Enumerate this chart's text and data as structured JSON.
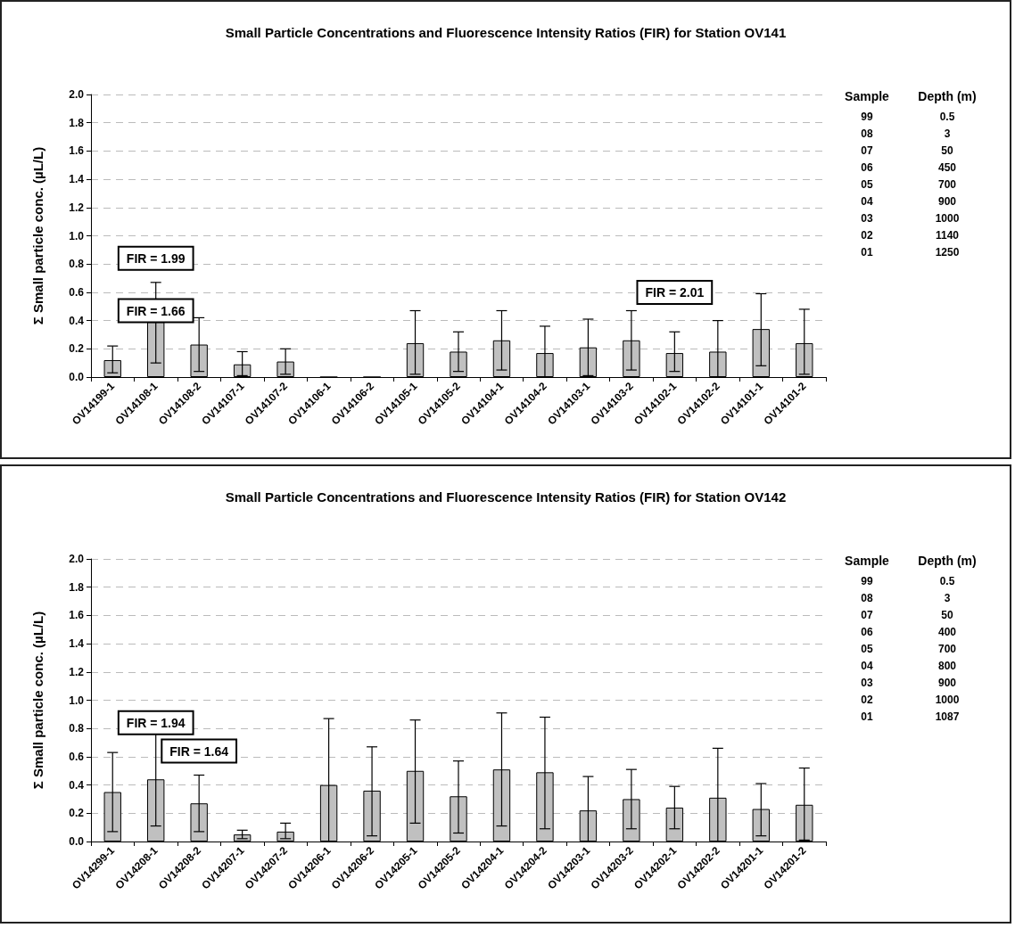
{
  "chart_data": [
    {
      "type": "bar",
      "title": "Small Particle Concentrations and Fluorescence Intensity Ratios (FIR) for Station OV141",
      "ylabel": "Σ Small particle conc. (µL/L)",
      "categories": [
        "OV14199-1",
        "OV14108-1",
        "OV14108-2",
        "OV14107-1",
        "OV14107-2",
        "OV14106-1",
        "OV14106-2",
        "OV14105-1",
        "OV14105-2",
        "OV14104-1",
        "OV14104-2",
        "OV14103-1",
        "OV14103-2",
        "OV14102-1",
        "OV14102-2",
        "OV14101-1",
        "OV14101-2"
      ],
      "series": [
        {
          "color": "#c0c0c0",
          "values": [
            0.12,
            0.39,
            0.23,
            0.09,
            0.11,
            0,
            0,
            0.24,
            0.18,
            0.26,
            0.17,
            0.21,
            0.26,
            0.17,
            0.18,
            0.34,
            0.24
          ],
          "errors": [
            [
              0.03,
              0.22
            ],
            [
              0.1,
              0.67
            ],
            [
              0.04,
              0.42
            ],
            [
              0.01,
              0.18
            ],
            [
              0.02,
              0.2
            ],
            null,
            null,
            [
              0.02,
              0.47
            ],
            [
              0.04,
              0.32
            ],
            [
              0.05,
              0.47
            ],
            [
              0,
              0.36
            ],
            [
              0.01,
              0.41
            ],
            [
              0.05,
              0.47
            ],
            [
              0.04,
              0.32
            ],
            [
              0,
              0.4
            ],
            [
              0.08,
              0.59
            ],
            [
              0.02,
              0.48
            ]
          ]
        }
      ],
      "ylim": [
        0,
        2
      ],
      "yticks": [
        {
          "value": 0,
          "label": "0.0"
        },
        0.2,
        0.4,
        0.6,
        0.8,
        {
          "value": 1,
          "label": "1.0"
        },
        1.2,
        1.4,
        1.6,
        1.8,
        {
          "value": 2,
          "label": "2.0"
        }
      ],
      "grid": "y",
      "annotations": [
        "FIR = 1.66",
        "FIR = 1.99",
        "FIR = 2.01",
        "Sample",
        "Depth (m)",
        "99",
        "0.5",
        "08",
        "3",
        "07",
        "50",
        "06",
        "450",
        "05",
        "700",
        "04",
        "900",
        "03",
        "1000",
        "02",
        "1140",
        "01",
        "1250"
      ]
    },
    {
      "type": "bar",
      "title": "Small Particle Concentrations and Fluorescence Intensity Ratios (FIR) for Station OV142",
      "ylabel": "Σ Small particle conc. (µL/L)",
      "categories": [
        "OV14299-1",
        "OV14208-1",
        "OV14208-2",
        "OV14207-1",
        "OV14207-2",
        "OV14206-1",
        "OV14206-2",
        "OV14205-1",
        "OV14205-2",
        "OV14204-1",
        "OV14204-2",
        "OV14203-1",
        "OV14203-2",
        "OV14202-1",
        "OV14202-2",
        "OV14201-1",
        "OV14201-2"
      ],
      "series": [
        {
          "color": "#c0c0c0",
          "values": [
            0.35,
            0.44,
            0.27,
            0.05,
            0.07,
            0.4,
            0.36,
            0.5,
            0.32,
            0.51,
            0.49,
            0.22,
            0.3,
            0.24,
            0.31,
            0.23,
            0.26
          ],
          "errors": [
            [
              0.07,
              0.63
            ],
            [
              0.11,
              0.78
            ],
            [
              0.07,
              0.47
            ],
            [
              0.02,
              0.08
            ],
            [
              0.02,
              0.13
            ],
            [
              0,
              0.87
            ],
            [
              0.04,
              0.67
            ],
            [
              0.13,
              0.86
            ],
            [
              0.06,
              0.57
            ],
            [
              0.11,
              0.91
            ],
            [
              0.09,
              0.88
            ],
            [
              0,
              0.46
            ],
            [
              0.09,
              0.51
            ],
            [
              0.09,
              0.39
            ],
            [
              0,
              0.66
            ],
            [
              0.04,
              0.41
            ],
            [
              0.01,
              0.52
            ]
          ]
        }
      ],
      "ylim": [
        0,
        2
      ],
      "yticks": [
        {
          "value": 0,
          "label": "0.0"
        },
        0.2,
        0.4,
        0.6,
        0.8,
        {
          "value": 1,
          "label": "1.0"
        },
        1.2,
        1.4,
        1.6,
        1.8,
        {
          "value": 2,
          "label": "2.0"
        }
      ],
      "grid": "y",
      "annotations": [
        "FIR = 1.94",
        "FIR = 1.64",
        "Sample",
        "Depth (m)",
        "99",
        "0.5",
        "08",
        "3",
        "07",
        "50",
        "06",
        "400",
        "05",
        "700",
        "04",
        "800",
        "03",
        "900",
        "02",
        "1000",
        "01",
        "1087"
      ]
    }
  ]
}
